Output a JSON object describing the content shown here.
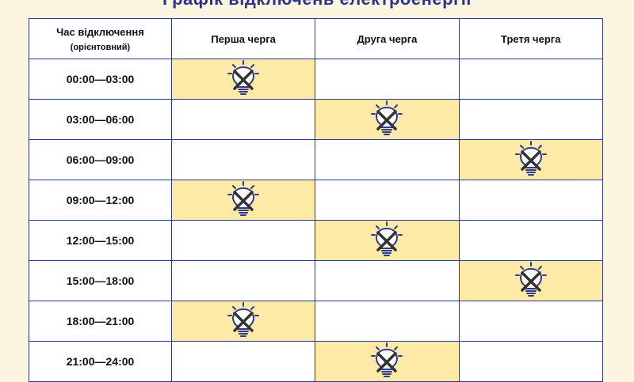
{
  "title": "Графік відключень електроенергії",
  "table": {
    "headers": {
      "time": "Час відключення",
      "time_note": "(орієнтовний)",
      "queue1": "Перша черга",
      "queue2": "Друга черга",
      "queue3": "Третя черга"
    },
    "rows": [
      {
        "time": "00:00—03:00",
        "off_queue": 1
      },
      {
        "time": "03:00—06:00",
        "off_queue": 2
      },
      {
        "time": "06:00—09:00",
        "off_queue": 3
      },
      {
        "time": "09:00—12:00",
        "off_queue": 1
      },
      {
        "time": "12:00—15:00",
        "off_queue": 2
      },
      {
        "time": "15:00—18:00",
        "off_queue": 3
      },
      {
        "time": "18:00—21:00",
        "off_queue": 1
      },
      {
        "time": "21:00—24:00",
        "off_queue": 2
      }
    ]
  },
  "colors": {
    "off_cell": "#fdeaa7",
    "border": "#2f3a8f",
    "bulb_outline": "#2f3a8f",
    "cross": "#333333"
  },
  "icons": {
    "power_off": "crossed-lightbulb-icon"
  }
}
